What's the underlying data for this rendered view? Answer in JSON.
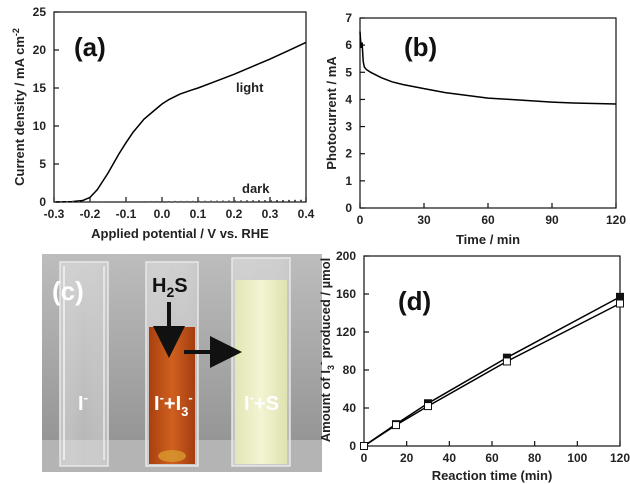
{
  "colors": {
    "axis": "#111111",
    "line": "#000000",
    "dark_line": "#555555",
    "solution_orange": "#c4501a",
    "solution_yellow": "#eef0c6"
  },
  "chart_data": [
    {
      "panel": "(a)",
      "type": "line",
      "xlabel": "Applied potential / V vs. RHE",
      "ylabel": "Current density / mA cm",
      "ylabel_sup": "-2",
      "xlim": [
        -0.3,
        0.4
      ],
      "ylim": [
        0,
        25
      ],
      "xticks": [
        -0.3,
        -0.2,
        -0.1,
        0.0,
        0.1,
        0.2,
        0.3,
        0.4
      ],
      "xtick_labels": [
        "-0.3",
        "-0.2",
        "-0.1",
        "0.0",
        "0.1",
        "0.2",
        "0.3",
        "0.4"
      ],
      "yticks": [
        0,
        5,
        10,
        15,
        20,
        25
      ],
      "ytick_labels": [
        "0",
        "5",
        "10",
        "15",
        "20",
        "25"
      ],
      "series": [
        {
          "name": "light",
          "style": "solid",
          "x": [
            -0.3,
            -0.25,
            -0.22,
            -0.2,
            -0.18,
            -0.15,
            -0.12,
            -0.1,
            -0.08,
            -0.05,
            -0.02,
            0.0,
            0.02,
            0.05,
            0.08,
            0.1,
            0.15,
            0.2,
            0.25,
            0.3,
            0.35,
            0.4
          ],
          "y": [
            0.0,
            0.05,
            0.2,
            0.6,
            1.6,
            3.8,
            6.3,
            7.8,
            9.2,
            10.9,
            12.1,
            12.9,
            13.5,
            14.2,
            14.7,
            15.0,
            15.9,
            16.8,
            17.8,
            18.8,
            19.9,
            21.0
          ]
        },
        {
          "name": "dark",
          "style": "dotted",
          "x": [
            -0.3,
            -0.2,
            -0.1,
            0.0,
            0.1,
            0.2,
            0.3,
            0.4
          ],
          "y": [
            0.0,
            0.0,
            0.0,
            0.02,
            0.05,
            0.1,
            0.15,
            0.2
          ]
        }
      ]
    },
    {
      "panel": "(b)",
      "type": "line",
      "xlabel": "Time / min",
      "ylabel": "Photocurrent / mA",
      "xlim": [
        0,
        120
      ],
      "ylim": [
        0,
        7
      ],
      "xticks": [
        0,
        30,
        60,
        90,
        120
      ],
      "xtick_labels": [
        "0",
        "30",
        "60",
        "90",
        "120"
      ],
      "yticks": [
        0,
        1,
        2,
        3,
        4,
        5,
        6,
        7
      ],
      "ytick_labels": [
        "0",
        "1",
        "2",
        "3",
        "4",
        "5",
        "6",
        "7"
      ],
      "series": [
        {
          "style": "solid",
          "x": [
            0,
            0.5,
            1,
            1.5,
            2,
            3,
            5,
            10,
            15,
            20,
            30,
            40,
            50,
            60,
            70,
            80,
            90,
            100,
            110,
            120
          ],
          "y": [
            6.5,
            5.9,
            6.1,
            5.4,
            5.2,
            5.1,
            5.0,
            4.8,
            4.65,
            4.55,
            4.4,
            4.25,
            4.15,
            4.05,
            4.0,
            3.95,
            3.9,
            3.87,
            3.85,
            3.83
          ]
        }
      ]
    },
    {
      "panel": "(d)",
      "type": "line",
      "xlabel": "Reaction time (min)",
      "ylabel_main": "Amount of I",
      "ylabel_sub": "3",
      "ylabel_sup": "-",
      "ylabel_rest": " produced / µmol",
      "xlim": [
        0,
        120
      ],
      "ylim": [
        0,
        200
      ],
      "xticks": [
        0,
        20,
        40,
        60,
        80,
        100,
        120
      ],
      "xtick_labels": [
        "0",
        "20",
        "40",
        "60",
        "80",
        "100",
        "120"
      ],
      "yticks": [
        0,
        40,
        80,
        120,
        160,
        200
      ],
      "ytick_labels": [
        "0",
        "40",
        "80",
        "120",
        "160",
        "200"
      ],
      "series": [
        {
          "marker": "filled-square",
          "x": [
            0,
            15,
            30,
            67,
            120
          ],
          "y": [
            0,
            23,
            45,
            93,
            157
          ]
        },
        {
          "marker": "open-square",
          "x": [
            0,
            15,
            30,
            67,
            120
          ],
          "y": [
            0,
            22,
            42,
            89,
            150
          ]
        }
      ]
    }
  ],
  "annotations": {
    "panel_a": "(a)",
    "panel_b": "(b)",
    "panel_c": "(c)",
    "panel_d": "(d)",
    "light_label": "light",
    "dark_label": "dark"
  },
  "photo": {
    "h2s_main": "H",
    "h2s_sub": "2",
    "h2s_end": "S",
    "vial1_main": "I",
    "vial1_sup": "-",
    "vial2_a": "I",
    "vial2_sup1": "-",
    "vial2_b": "+I",
    "vial2_sub": "3",
    "vial2_sup2": "-",
    "vial3_a": "I",
    "vial3_sup": "-",
    "vial3_b": "+S"
  }
}
